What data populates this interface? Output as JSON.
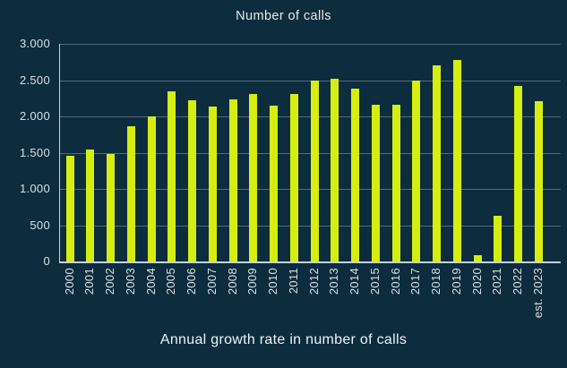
{
  "title": "Number of calls",
  "caption": "Annual growth rate in number of calls",
  "colors": {
    "background": "#0d2c3e",
    "bar": "#d5ee10",
    "gridline": "rgba(214,232,238,0.34)",
    "axis": "#c3d5dc",
    "tick_text": "#d8e2e6",
    "title_text": "#e4ebee"
  },
  "chart_data": {
    "type": "bar",
    "title": "Number of calls",
    "xlabel": "",
    "ylabel": "",
    "categories": [
      "2000",
      "2001",
      "2002",
      "2003",
      "2004",
      "2005",
      "2006",
      "2007",
      "2008",
      "2009",
      "2010",
      "2011",
      "2012",
      "2013",
      "2014",
      "2015",
      "2016",
      "2017",
      "2018",
      "2019",
      "2020",
      "2021",
      "2022",
      "est. 2023"
    ],
    "values": [
      1460,
      1540,
      1480,
      1870,
      2000,
      2340,
      2220,
      2130,
      2230,
      2310,
      2150,
      2310,
      2500,
      2520,
      2380,
      2160,
      2160,
      2500,
      2710,
      2780,
      90,
      630,
      2420,
      2210
    ],
    "ylim": [
      0,
      3000
    ],
    "ytick_step": 500,
    "ytick_labels": [
      "0",
      "500",
      "1.000",
      "1.500",
      "2.000",
      "2.500",
      "3.000"
    ],
    "grid": true,
    "legend_position": "none",
    "annotation": "Annual growth rate in number of calls"
  }
}
